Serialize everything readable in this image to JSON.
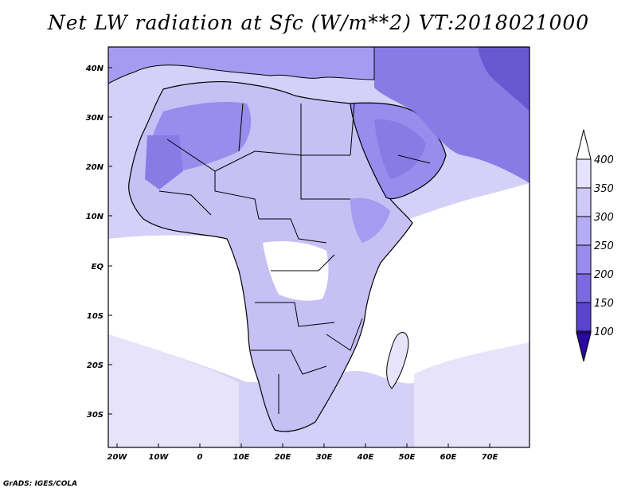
{
  "title": "Net LW radiation at Sfc (W/m**2) VT:2018021000",
  "credit": "GrADS: IGES/COLA",
  "map": {
    "lon_ticks": [
      "20W",
      "10W",
      "0",
      "10E",
      "20E",
      "30E",
      "40E",
      "50E",
      "60E",
      "70E"
    ],
    "lat_ticks": [
      "40N",
      "30N",
      "20N",
      "10N",
      "EQ",
      "10S",
      "20S",
      "30S"
    ]
  },
  "colorbar": {
    "levels": [
      "100",
      "150",
      "200",
      "250",
      "300",
      "350",
      "400"
    ],
    "colors": [
      "#3a1fb8",
      "#5a44cc",
      "#7b6ae0",
      "#9a8ced",
      "#b6acf3",
      "#cfc9f8",
      "#e5e2fc"
    ],
    "below_color": "#2a0aa0",
    "above_color": "#ffffff"
  },
  "legend": {
    "ocean_color": "#d4d0f7",
    "dark_color": "#7a6ad8"
  }
}
